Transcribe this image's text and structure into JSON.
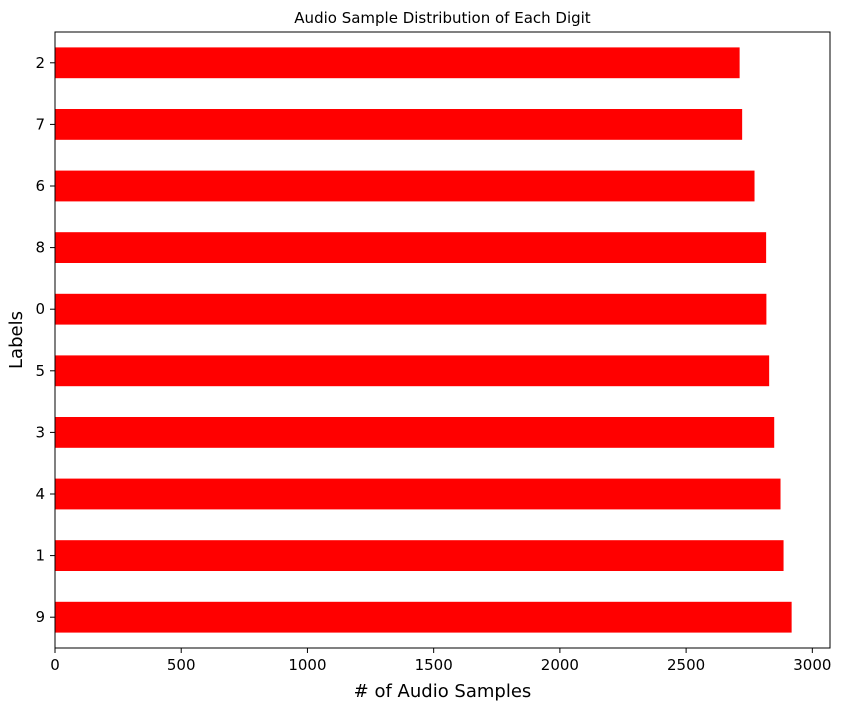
{
  "chart_data": {
    "type": "bar",
    "orientation": "horizontal",
    "title": "Audio Sample Distribution of Each Digit",
    "xlabel": "# of Audio Samples",
    "ylabel": "Labels",
    "categories": [
      "2",
      "7",
      "6",
      "8",
      "0",
      "5",
      "3",
      "4",
      "1",
      "9"
    ],
    "values": [
      2712,
      2722,
      2771,
      2817,
      2818,
      2829,
      2849,
      2874,
      2886,
      2918
    ],
    "xlim": [
      0,
      3070
    ],
    "xticks": [
      0,
      500,
      1000,
      1500,
      2000,
      2500,
      3000
    ],
    "grid": false,
    "legend": "none",
    "bar_color": "#ff0000"
  }
}
